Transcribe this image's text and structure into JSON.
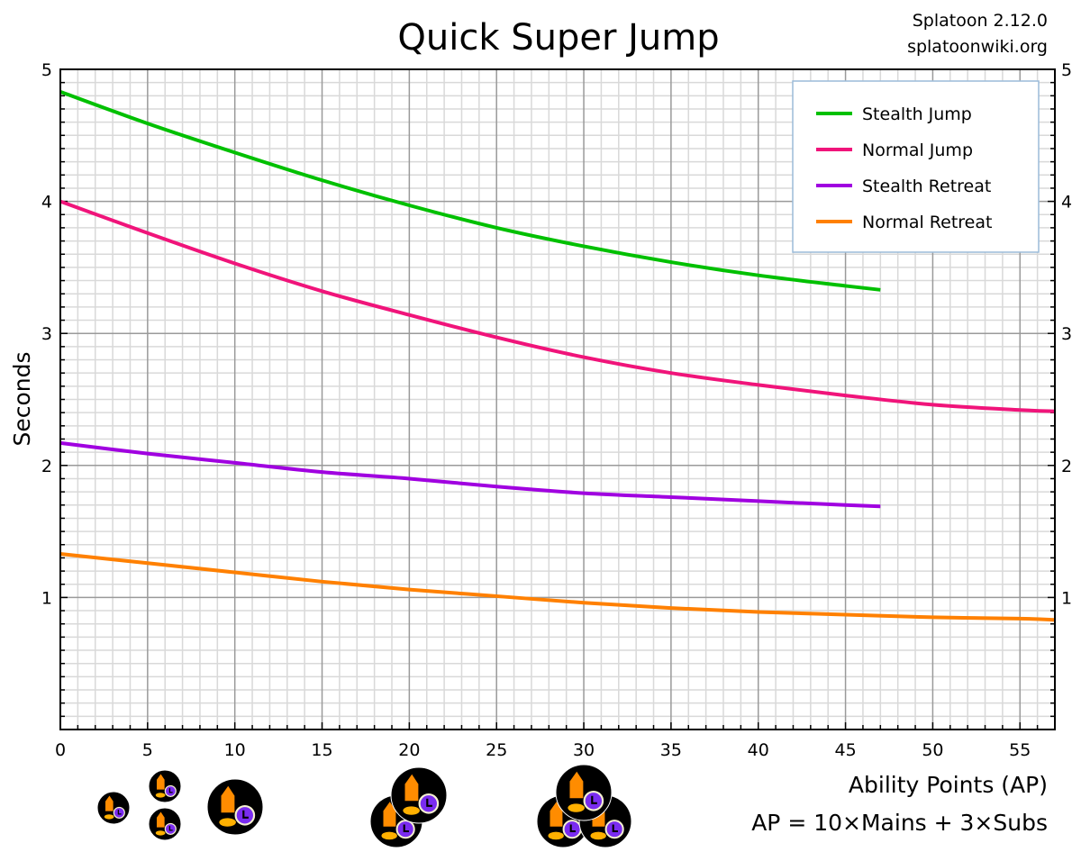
{
  "chart_data": {
    "type": "line",
    "title": "Quick Super Jump",
    "source_lines": [
      "Splatoon 2.12.0",
      "splatoonwiki.org"
    ],
    "xlabel": "Ability Points (AP)",
    "xlabel_note": "AP = 10×Mains + 3×Subs",
    "ylabel": "Seconds",
    "xlim": [
      0,
      57
    ],
    "ylim": [
      0,
      5
    ],
    "xticks": [
      0,
      5,
      10,
      15,
      20,
      25,
      30,
      35,
      40,
      45,
      50,
      55
    ],
    "yticks": [
      1,
      2,
      3,
      4,
      5
    ],
    "grid": true,
    "legend_position": "top-right",
    "series": [
      {
        "name": "Stealth Jump",
        "color": "#00c000",
        "x": [
          0,
          5,
          10,
          15,
          20,
          25,
          30,
          35,
          40,
          45,
          47
        ],
        "y": [
          4.83,
          4.59,
          4.37,
          4.16,
          3.97,
          3.8,
          3.66,
          3.54,
          3.44,
          3.36,
          3.33
        ]
      },
      {
        "name": "Normal Jump",
        "color": "#f0147a",
        "x": [
          0,
          5,
          10,
          15,
          20,
          25,
          30,
          35,
          40,
          45,
          50,
          55,
          57
        ],
        "y": [
          4.0,
          3.76,
          3.53,
          3.32,
          3.14,
          2.97,
          2.82,
          2.7,
          2.61,
          2.53,
          2.46,
          2.42,
          2.41
        ]
      },
      {
        "name": "Stealth Retreat",
        "color": "#a000e0",
        "x": [
          0,
          5,
          10,
          15,
          20,
          25,
          30,
          35,
          40,
          45,
          47
        ],
        "y": [
          2.17,
          2.09,
          2.02,
          1.95,
          1.9,
          1.84,
          1.79,
          1.76,
          1.73,
          1.7,
          1.69
        ]
      },
      {
        "name": "Normal Retreat",
        "color": "#ff8000",
        "x": [
          0,
          5,
          10,
          15,
          20,
          25,
          30,
          35,
          40,
          45,
          50,
          55,
          57
        ],
        "y": [
          1.33,
          1.26,
          1.19,
          1.12,
          1.06,
          1.01,
          0.96,
          0.92,
          0.89,
          0.87,
          0.85,
          0.84,
          0.83
        ]
      }
    ],
    "ability_icon_groups": [
      {
        "ap": 3,
        "label": "1 sub"
      },
      {
        "ap": 6,
        "label": "2 subs"
      },
      {
        "ap": 10,
        "label": "1 main"
      },
      {
        "ap": 20,
        "label": "2 mains"
      },
      {
        "ap": 30,
        "label": "3 mains"
      }
    ],
    "icon_colors": {
      "badge": "#000000",
      "squid": "#ff8c00",
      "clock": "#7a2cf0"
    }
  }
}
